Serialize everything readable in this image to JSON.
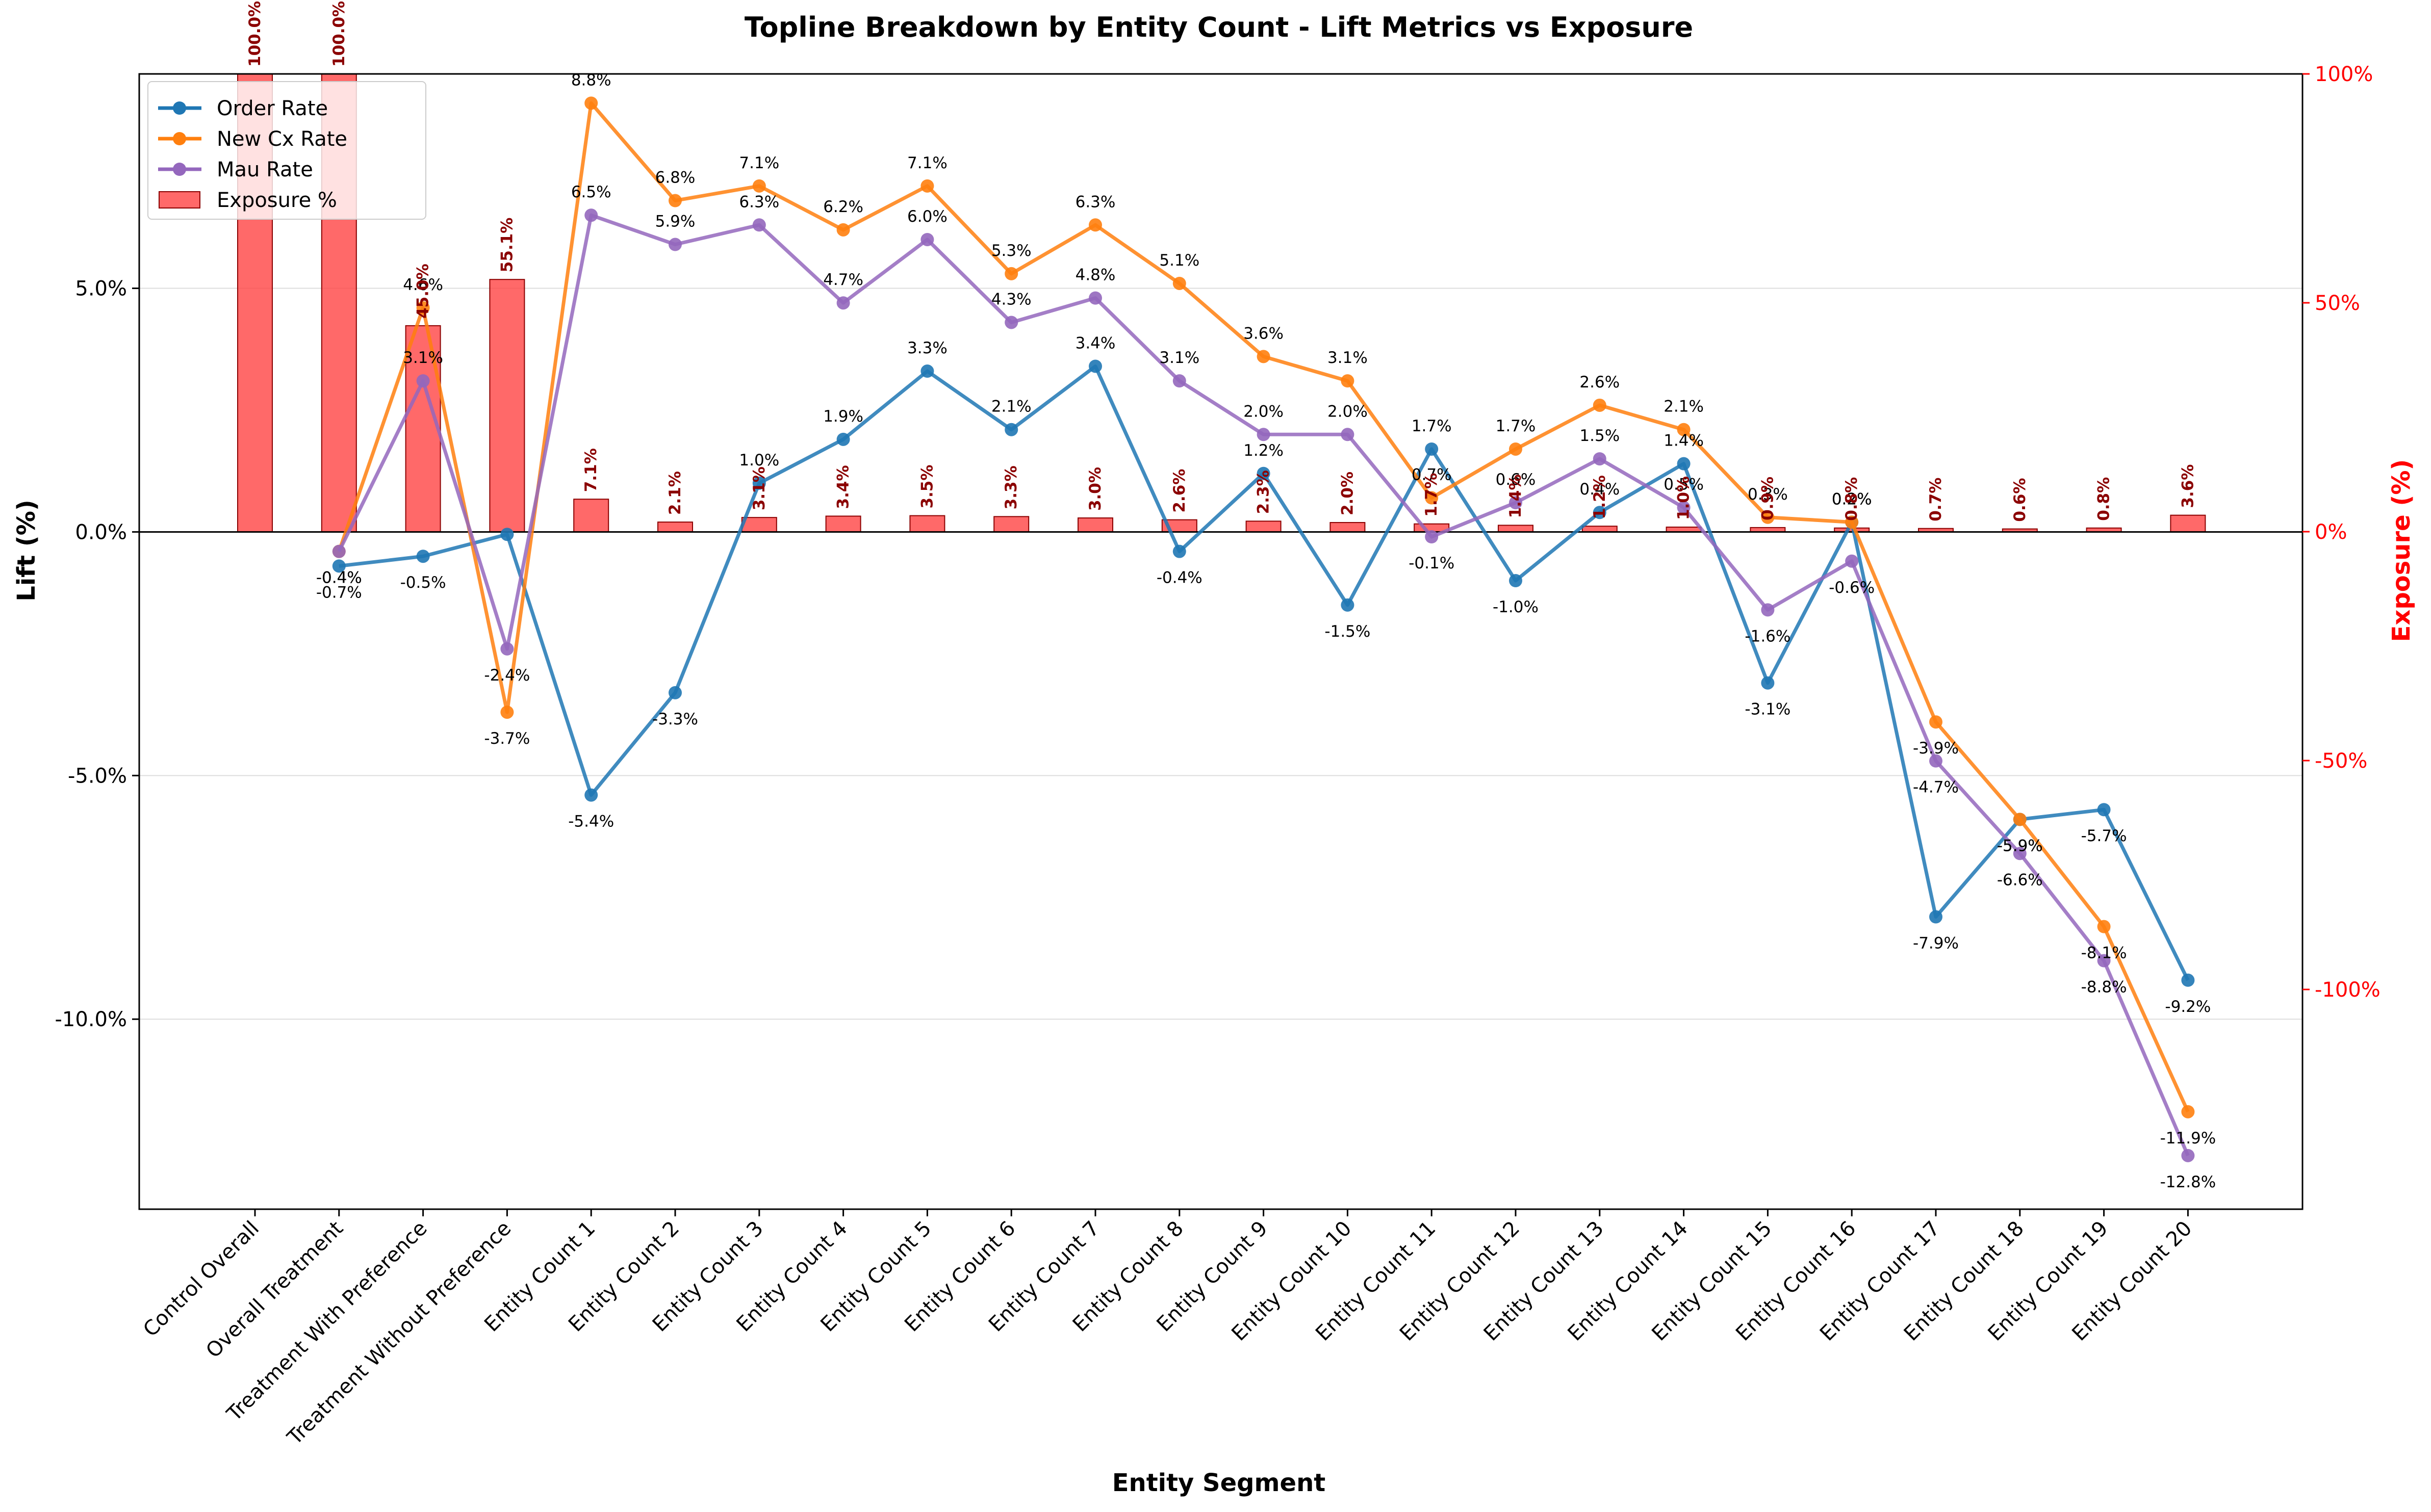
{
  "chart_data": {
    "type": "line",
    "title": "Topline Breakdown by Entity Count - Lift Metrics vs Exposure",
    "xlabel": "Entity Segment",
    "ylabel": "Lift (%)",
    "y2label": "Exposure (%)",
    "ylim": [
      -13.9,
      9.4
    ],
    "y2lim": [
      -148,
      100
    ],
    "yticks": [
      5.0,
      0.0,
      -5.0,
      -10.0
    ],
    "ytick_labels": [
      "5.0%",
      "0.0%",
      "-5.0%",
      "-10.0%"
    ],
    "y2ticks": [
      100,
      50,
      0,
      -50,
      -100
    ],
    "y2tick_labels": [
      "100%",
      "50%",
      "0%",
      "-50%",
      "-100%"
    ],
    "grid": "horizontal",
    "legend_position": "upper-left",
    "categories": [
      "Control Overall",
      "Overall Treatment",
      "Treatment With Preference",
      "Treatment Without Preference",
      "Entity Count 1",
      "Entity Count 2",
      "Entity Count 3",
      "Entity Count 4",
      "Entity Count 5",
      "Entity Count 6",
      "Entity Count 7",
      "Entity Count 8",
      "Entity Count 9",
      "Entity Count 10",
      "Entity Count 11",
      "Entity Count 12",
      "Entity Count 13",
      "Entity Count 14",
      "Entity Count 15",
      "Entity Count 16",
      "Entity Count 17",
      "Entity Count 18",
      "Entity Count 19",
      "Entity Count 20"
    ],
    "series": [
      {
        "name": "Order Rate",
        "color": "#1f77b4",
        "axis": "left",
        "values": [
          null,
          -0.7,
          -0.5,
          -0.05,
          -5.4,
          -3.3,
          1.0,
          1.9,
          3.3,
          2.1,
          3.4,
          -0.4,
          1.2,
          -1.5,
          1.7,
          -1.0,
          0.4,
          1.4,
          -3.1,
          0.2,
          -7.9,
          -5.9,
          -5.7,
          -9.2
        ],
        "labels": [
          null,
          "-0.7%",
          "-0.5%",
          null,
          "-5.4%",
          "-3.3%",
          "1.0%",
          "1.9%",
          "3.3%",
          "2.1%",
          "3.4%",
          "-0.4%",
          "1.2%",
          "-1.5%",
          "1.7%",
          "-1.0%",
          "0.4%",
          "1.4%",
          "-3.1%",
          "0.2%",
          "-7.9%",
          "-5.9%",
          "-5.7%",
          "-9.2%"
        ]
      },
      {
        "name": "New Cx Rate",
        "color": "#ff7f0e",
        "axis": "left",
        "values": [
          null,
          -0.4,
          4.6,
          -3.7,
          8.8,
          6.8,
          7.1,
          6.2,
          7.1,
          5.3,
          6.3,
          5.1,
          3.6,
          3.1,
          0.7,
          1.7,
          2.6,
          2.1,
          0.3,
          0.2,
          -3.9,
          -5.9,
          -8.1,
          -11.9
        ],
        "labels": [
          null,
          "-0.4%",
          "4.6%",
          "-3.7%",
          "8.8%",
          "6.8%",
          "7.1%",
          "6.2%",
          "7.1%",
          "5.3%",
          "6.3%",
          "5.1%",
          "3.6%",
          "3.1%",
          "0.7%",
          "1.7%",
          "2.6%",
          "2.1%",
          "0.3%",
          "0.2%",
          "-3.9%",
          "-5.9%",
          "-8.1%",
          "-11.9%"
        ]
      },
      {
        "name": "Mau Rate",
        "color": "#9467bd",
        "axis": "left",
        "values": [
          null,
          -0.4,
          3.1,
          -2.4,
          6.5,
          5.9,
          6.3,
          4.7,
          6.0,
          4.3,
          4.8,
          3.1,
          2.0,
          2.0,
          -0.1,
          0.6,
          1.5,
          0.5,
          -1.6,
          -0.6,
          -4.7,
          -6.6,
          -8.8,
          -12.8
        ],
        "labels": [
          null,
          "-0.4%",
          "3.1%",
          "-2.4%",
          "6.5%",
          "5.9%",
          "6.3%",
          "4.7%",
          "6.0%",
          "4.3%",
          "4.8%",
          "3.1%",
          "2.0%",
          "2.0%",
          "-0.1%",
          "0.6%",
          "1.5%",
          "0.5%",
          "-1.6%",
          "-0.6%",
          "-4.7%",
          "-6.6%",
          "-8.8%",
          "-12.8%"
        ]
      },
      {
        "name": "Exposure %",
        "type": "bar",
        "color": "#ff4444",
        "axis": "right",
        "values": [
          100.0,
          100.0,
          45.0,
          55.1,
          7.1,
          2.1,
          3.1,
          3.4,
          3.5,
          3.3,
          3.0,
          2.6,
          2.3,
          2.0,
          1.7,
          1.4,
          1.2,
          1.0,
          0.9,
          0.8,
          0.7,
          0.6,
          0.8,
          3.6
        ],
        "labels": [
          "100.0%",
          "100.0%",
          "45.0%",
          "55.1%",
          "7.1%",
          "2.1%",
          "3.1%",
          "3.4%",
          "3.5%",
          "3.3%",
          "3.0%",
          "2.6%",
          "2.3%",
          "2.0%",
          "1.7%",
          "1.4%",
          "1.2%",
          "1.0%",
          "0.9%",
          "0.8%",
          "0.7%",
          "0.6%",
          "0.8%",
          "3.6%"
        ]
      }
    ]
  }
}
